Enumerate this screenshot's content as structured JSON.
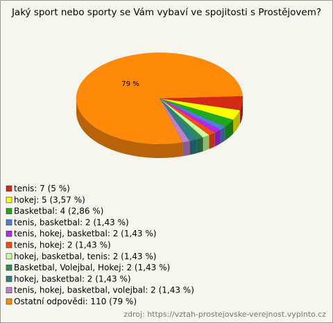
{
  "chart_data": {
    "type": "pie",
    "title": "Jaký sport nebo sporty se Vám vybaví ve spojitosti s Prostějovem?",
    "categories": [
      "tenis",
      "hokej",
      "Basketbal",
      "tenis, basketbal",
      "tenis, hokej, basketbal",
      "tenis, hokej",
      "hokej, basketbal, tenis",
      "Basketbal, Volejbal, Hokej",
      "hokej, basketbal",
      "tenis, hokej, basketbal, volejbal",
      "Ostatní odpovědi"
    ],
    "counts": [
      7,
      5,
      4,
      2,
      2,
      2,
      2,
      2,
      2,
      2,
      110
    ],
    "values": [
      5,
      3.57,
      2.86,
      1.43,
      1.43,
      1.43,
      1.43,
      1.43,
      1.43,
      1.43,
      79
    ],
    "legend_labels": [
      "tenis: 7 (5 %)",
      "hokej: 5 (3,57 %)",
      "Basketbal: 4 (2,86 %)",
      "tenis, basketbal: 2 (1,43 %)",
      "tenis, hokej, basketbal: 2 (1,43 %)",
      "tenis, hokej: 2 (1,43 %)",
      "hokej, basketbal, tenis: 2 (1,43 %)",
      "Basketbal, Volejbal, Hokej: 2 (1,43 %)",
      "hokej, basketbal: 2 (1,43 %)",
      "tenis, hokej, basketbal, volejbal: 2 (1,43 %)",
      "Ostatní odpovědi: 110 (79 %)"
    ],
    "colors": [
      "#d42a14",
      "#ffff00",
      "#1eaa1e",
      "#4f7fd8",
      "#b428e6",
      "#ff4a14",
      "#ccff99",
      "#2e8b57",
      "#2e7d8c",
      "#c080c8",
      "#ff8a0a"
    ],
    "value_labels": [
      null,
      null,
      null,
      null,
      null,
      null,
      null,
      null,
      null,
      null,
      "79 %"
    ],
    "source": "zdroj: https://vztah-prostejovske-verejnost.vyplnto.cz"
  }
}
